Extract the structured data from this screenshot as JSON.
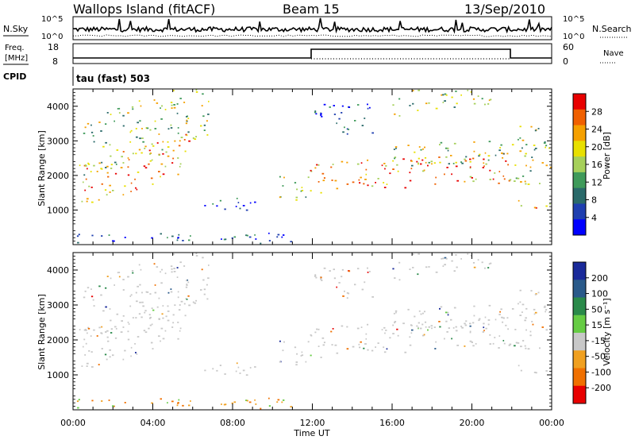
{
  "header": {
    "station": "Wallops Island (fitACF)",
    "beam": "Beam 15",
    "date": "13/Sep/2010"
  },
  "top_panels": {
    "nsky_label": "N.Sky",
    "nsearch_label": "N.Search",
    "freq_label_1": "Freq.",
    "freq_label_2": "[MHz]",
    "nave_label": "Nave",
    "cpid_label": "CPID",
    "cpid_value": "tau (fast) 503",
    "noise_ticks": [
      "10^5",
      "10^0"
    ],
    "freq_ticks": [
      "18",
      "8"
    ],
    "nave_ticks": [
      "60",
      "0"
    ]
  },
  "chart_data": [
    {
      "type": "heatmap",
      "title": "",
      "ylabel": "Slant Range [km]",
      "xlabel": "",
      "ylim": [
        0,
        4500
      ],
      "yticks": [
        "1000",
        "2000",
        "3000",
        "4000"
      ],
      "colorbar_label": "Power [dB]",
      "colorbar_ticks": [
        "4",
        "8",
        "12",
        "16",
        "20",
        "24",
        "28"
      ],
      "colorbar_colors": [
        "#0000ff",
        "#1f3fb0",
        "#2a6a6a",
        "#3f9a5a",
        "#a6d05a",
        "#e8e000",
        "#f5a000",
        "#f06000",
        "#e80000"
      ]
    },
    {
      "type": "heatmap",
      "title": "",
      "ylabel": "Slant Range [km]",
      "xlabel": "Time UT",
      "ylim": [
        0,
        4500
      ],
      "yticks": [
        "1000",
        "2000",
        "3000",
        "4000"
      ],
      "xticks": [
        "00:00",
        "04:00",
        "08:00",
        "12:00",
        "16:00",
        "20:00",
        "00:00"
      ],
      "colorbar_label": "Velocity [m s⁻¹]",
      "colorbar_ticks": [
        "200",
        "100",
        "50",
        "15",
        "-15",
        "-50",
        "-100",
        "-200"
      ],
      "colorbar_colors": [
        "#1a2a9a",
        "#2a5a8a",
        "#2a8a4a",
        "#66cc44",
        "#c8c8c8",
        "#f0a020",
        "#f07000",
        "#e80000"
      ]
    }
  ]
}
